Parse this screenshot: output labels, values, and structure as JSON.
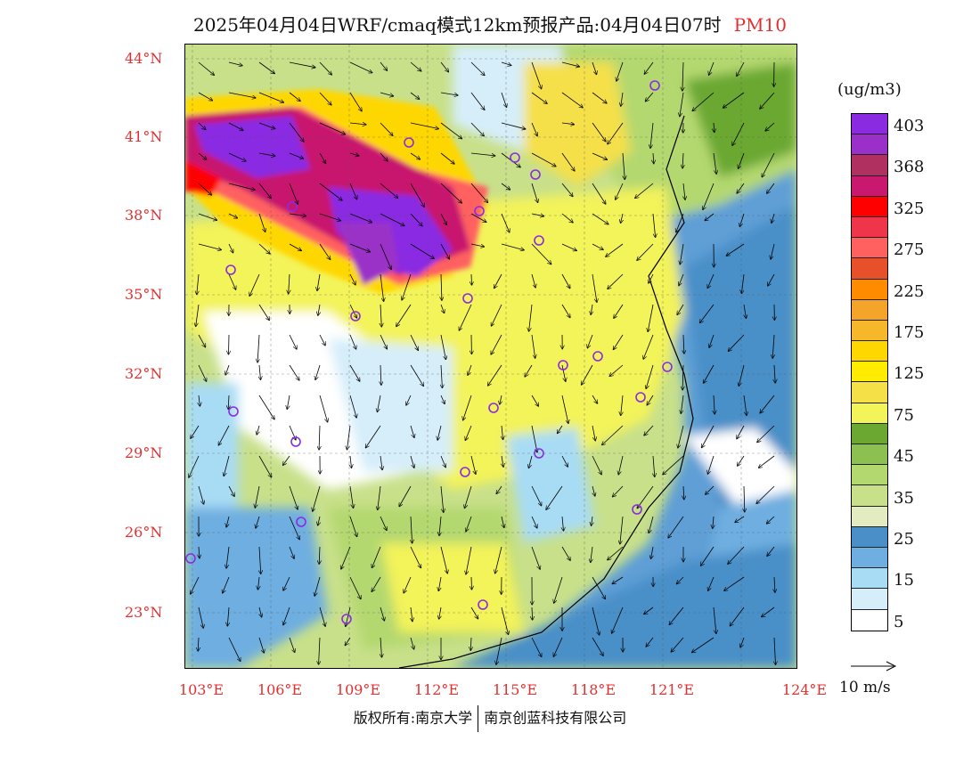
{
  "title": {
    "main": "2025年04月04日WRF/cmaq模式12km预报产品:04月04日07时",
    "variable": "PM10"
  },
  "lat_labels": [
    "44°N",
    "41°N",
    "38°N",
    "35°N",
    "32°N",
    "29°N",
    "26°N",
    "23°N"
  ],
  "lon_labels": [
    "103°E",
    "106°E",
    "109°E",
    "112°E",
    "115°E",
    "118°E",
    "121°E",
    "124°E"
  ],
  "colorbar": {
    "unit": "(ug/m3)",
    "labels": [
      "403",
      "368",
      "325",
      "275",
      "225",
      "175",
      "125",
      "75",
      "45",
      "35",
      "25",
      "15",
      "5"
    ],
    "colors": [
      "#8a2be2",
      "#9b30c8",
      "#b03060",
      "#c8196e",
      "#ff0000",
      "#f0344a",
      "#ff6060",
      "#e8502a",
      "#ff8c00",
      "#f4a428",
      "#f6b82a",
      "#ffd700",
      "#ffec00",
      "#f5e048",
      "#f3f35a",
      "#6aa832",
      "#8cc050",
      "#b4d870",
      "#c8e08a",
      "#e2ecc0",
      "#4a8fc8",
      "#6eaee0",
      "#a8dcf4",
      "#d6eefa",
      "#ffffff"
    ]
  },
  "reference_vector": "10 m/s",
  "copyright": {
    "left": "版权所有:南京大学",
    "right": "南京创蓝科技有限公司"
  }
}
